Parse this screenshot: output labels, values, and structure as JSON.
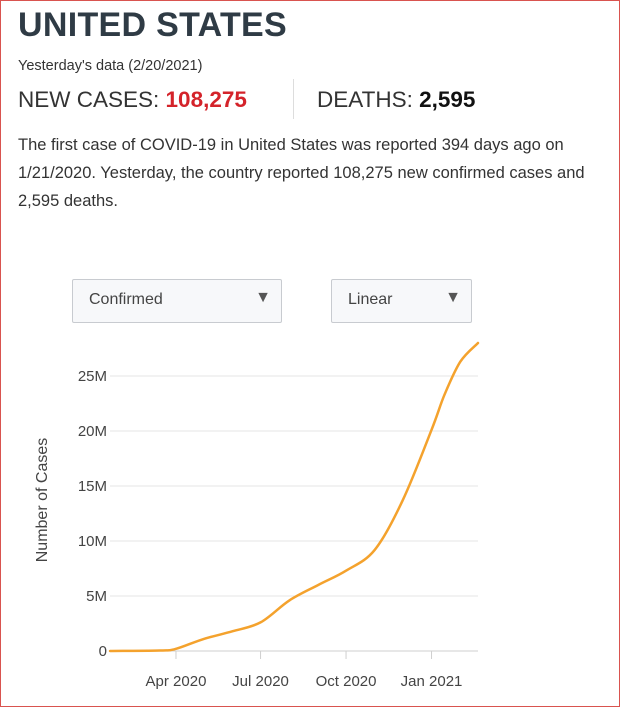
{
  "header": {
    "country": "UNITED STATES",
    "date_text": "Yesterday's data (2/20/2021)",
    "new_cases_label": "NEW CASES:",
    "new_cases_value": "108,275",
    "deaths_label": "DEATHS:",
    "deaths_value": "2,595"
  },
  "summary": {
    "t1": "The first case of ",
    "t2": "COVID-19",
    "t3": " in United States was reported 394 days ago on 1/21/2020. Yesterday, the country reported 108,275 new confirmed cases and 2,595 deaths."
  },
  "controls": {
    "metric_select": "Confirmed",
    "scale_select": "Linear",
    "dropdown_icon": "triangle-down"
  },
  "colors": {
    "accent_red": "#d4232a",
    "line": "#f4a22d",
    "grid": "#e6e6e6"
  },
  "chart_data": {
    "type": "line",
    "title": "",
    "xlabel": "",
    "ylabel": "Number of Cases",
    "grid": true,
    "legend": "none",
    "xlim": [
      "2020-01-21",
      "2021-02-20"
    ],
    "ylim": [
      0,
      28000000
    ],
    "x_ticks": [
      {
        "date": "2020-04-01",
        "label": "Apr 2020"
      },
      {
        "date": "2020-07-01",
        "label": "Jul 2020"
      },
      {
        "date": "2020-10-01",
        "label": "Oct 2020"
      },
      {
        "date": "2021-01-01",
        "label": "Jan 2021"
      }
    ],
    "y_ticks": [
      {
        "value": 0,
        "label": "0"
      },
      {
        "value": 5000000,
        "label": "5M"
      },
      {
        "value": 10000000,
        "label": "10M"
      },
      {
        "value": 15000000,
        "label": "15M"
      },
      {
        "value": 20000000,
        "label": "20M"
      },
      {
        "value": 25000000,
        "label": "25M"
      }
    ],
    "series": [
      {
        "values": [
          {
            "x": "2020-01-21",
            "y": 0
          },
          {
            "x": "2020-03-15",
            "y": 50000
          },
          {
            "x": "2020-04-01",
            "y": 200000
          },
          {
            "x": "2020-05-01",
            "y": 1100000
          },
          {
            "x": "2020-06-01",
            "y": 1800000
          },
          {
            "x": "2020-07-01",
            "y": 2600000
          },
          {
            "x": "2020-08-01",
            "y": 4600000
          },
          {
            "x": "2020-09-01",
            "y": 6000000
          },
          {
            "x": "2020-10-01",
            "y": 7300000
          },
          {
            "x": "2020-11-01",
            "y": 9200000
          },
          {
            "x": "2020-12-01",
            "y": 13700000
          },
          {
            "x": "2021-01-01",
            "y": 20100000
          },
          {
            "x": "2021-01-15",
            "y": 23300000
          },
          {
            "x": "2021-02-01",
            "y": 26300000
          },
          {
            "x": "2021-02-20",
            "y": 28000000
          }
        ]
      }
    ]
  }
}
